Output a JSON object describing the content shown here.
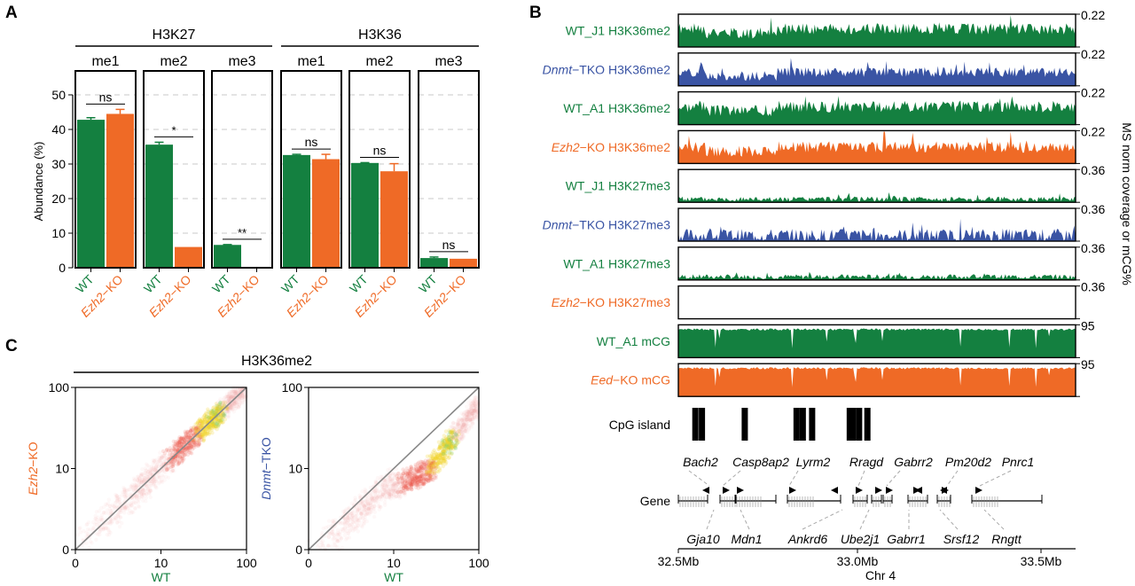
{
  "colors": {
    "wt": "#148040",
    "ko": "#ef6a26",
    "tko": "#3a54a4",
    "axis": "#000000",
    "grid": "#c8c8c8"
  },
  "panels": {
    "A": "A",
    "B": "B",
    "C": "C"
  },
  "chart_data": [
    {
      "type": "bar",
      "panel": "A",
      "ylabel": "Abundance (%)",
      "ylim": [
        0,
        55
      ],
      "yticks": [
        0,
        10,
        20,
        30,
        40,
        50
      ],
      "grid": "dashed horizontal",
      "categories": [
        "WT",
        "Ezh2-KO"
      ],
      "groups": [
        {
          "name": "H3K27",
          "subpanels": [
            {
              "label": "me1",
              "values": [
                42.8,
                44.5
              ],
              "errors": [
                0.6,
                1.3
              ],
              "sig": "ns"
            },
            {
              "label": "me2",
              "values": [
                35.6,
                6.0
              ],
              "errors": [
                0.7,
                0.0
              ],
              "sig": "*"
            },
            {
              "label": "me3",
              "values": [
                6.6,
                0.1
              ],
              "errors": [
                0.1,
                0.0
              ],
              "sig": "**"
            }
          ]
        },
        {
          "name": "H3K36",
          "subpanels": [
            {
              "label": "me1",
              "values": [
                32.6,
                31.4
              ],
              "errors": [
                0.2,
                1.4
              ],
              "sig": "ns"
            },
            {
              "label": "me2",
              "values": [
                30.3,
                27.9
              ],
              "errors": [
                0.1,
                2.2
              ],
              "sig": "ns"
            },
            {
              "label": "me3",
              "values": [
                2.8,
                2.6
              ],
              "errors": [
                0.3,
                0.0
              ],
              "sig": "ns"
            }
          ]
        }
      ]
    },
    {
      "type": "area",
      "panel": "B",
      "y_axis_label": "MS norm coverage or mCG%",
      "x_axis_label": "Chr 4",
      "xlim_mb": [
        32.5,
        33.65
      ],
      "xticks": [
        "32.5Mb",
        "33.0Mb",
        "33.5Mb"
      ],
      "tracks": [
        {
          "label_pre": "",
          "label_it": "",
          "label": "WT_J1 H3K36me2",
          "color": "wt",
          "ymax": "0.22",
          "level": 0.55,
          "noise": 0.35,
          "seed": 1
        },
        {
          "label_pre": "",
          "label_it": "Dnmt",
          "label": "−TKO H3K36me2",
          "color": "tko",
          "ymax": "0.22",
          "level": 0.42,
          "noise": 0.3,
          "seed": 2
        },
        {
          "label_pre": "",
          "label_it": "",
          "label": "WT_A1 H3K36me2",
          "color": "wt",
          "ymax": "0.22",
          "level": 0.55,
          "noise": 0.35,
          "seed": 3
        },
        {
          "label_pre": "",
          "label_it": "Ezh2",
          "label": "−KO H3K36me2",
          "color": "ko",
          "ymax": "0.22",
          "level": 0.5,
          "noise": 0.35,
          "seed": 4
        },
        {
          "label_pre": "",
          "label_it": "",
          "label": "WT_J1 H3K27me3",
          "color": "wt",
          "ymax": "0.36",
          "level": 0.1,
          "noise": 0.15,
          "seed": 5
        },
        {
          "label_pre": "",
          "label_it": "Dnmt",
          "label": "−TKO H3K27me3",
          "color": "tko",
          "ymax": "0.36",
          "level": 0.18,
          "noise": 0.4,
          "seed": 6
        },
        {
          "label_pre": "",
          "label_it": "",
          "label": "WT_A1 H3K27me3",
          "color": "wt",
          "ymax": "0.36",
          "level": 0.1,
          "noise": 0.15,
          "seed": 7
        },
        {
          "label_pre": "",
          "label_it": "Ezh2",
          "label": "−KO H3K27me3",
          "color": "ko",
          "ymax": "0.36",
          "level": 0.0,
          "noise": 0.0,
          "seed": 8
        },
        {
          "label_pre": "",
          "label_it": "",
          "label": "WT_A1 mCG",
          "color": "wt",
          "ymax": "95",
          "level": 0.86,
          "noise": -0.6,
          "seed": 9
        },
        {
          "label_pre": "",
          "label_it": "Eed",
          "label": "−KO mCG",
          "color": "ko",
          "ymax": "95",
          "level": 0.86,
          "noise": -0.6,
          "seed": 9
        }
      ],
      "cpg_island_label": "CpG island",
      "cpg_islands_mb": [
        32.548,
        32.567,
        32.691,
        32.841,
        32.859,
        32.886,
        32.995,
        33.004,
        33.022,
        33.046
      ],
      "gene_label": "Gene",
      "genes_top": [
        "Bach2",
        "Casp8ap2",
        "Lyrm2",
        "Rragd",
        "Gabrr2",
        "Pm20d2",
        "Pnrc1"
      ],
      "genes_bottom": [
        "Gja10",
        "Mdn1",
        "Ankrd6",
        "Ube2j1",
        "Gabrr1",
        "Srsf12",
        "Rngtt"
      ]
    },
    {
      "type": "scatter",
      "panel": "C",
      "title": "H3K36me2",
      "scale": "log",
      "xticks": [
        "0",
        "10",
        "100"
      ],
      "yticks": [
        "0",
        "10",
        "100"
      ],
      "plots": [
        {
          "xlabel": "WT",
          "ylabel_it": "Ezh2",
          "ylabel": "−KO",
          "ylabel_color": "ko",
          "shift": 0.0
        },
        {
          "xlabel": "WT",
          "ylabel_it": "Dnmt",
          "ylabel": "−TKO",
          "ylabel_color": "tko",
          "shift": -0.22
        }
      ]
    }
  ]
}
